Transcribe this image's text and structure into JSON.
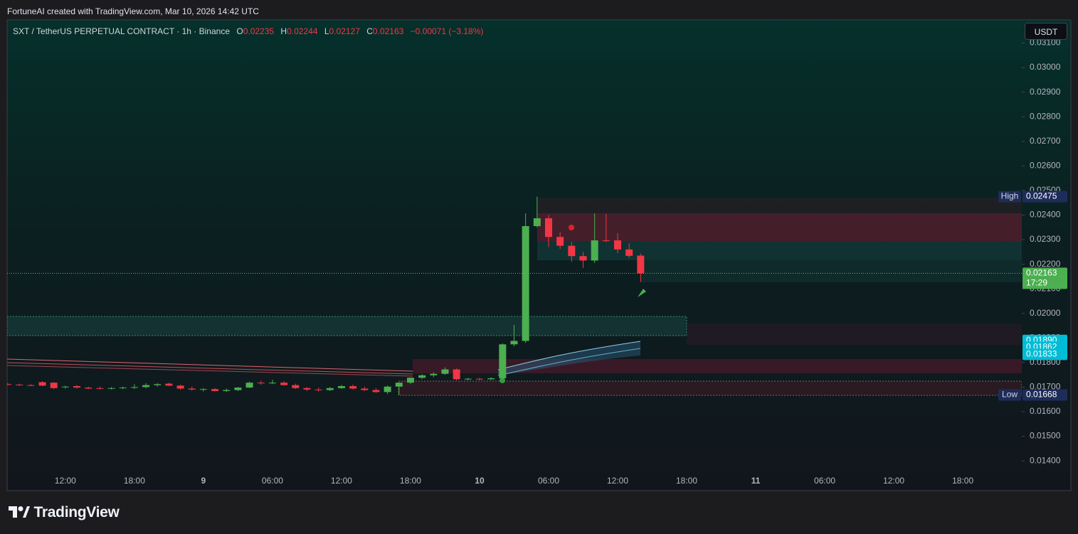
{
  "header": {
    "attribution": "FortuneAI created with TradingView.com, Mar 10, 2026 14:42 UTC",
    "symbol": "SXT / TetherUS PERPETUAL CONTRACT · 1h · Binance",
    "open_label": "O",
    "open": "0.02235",
    "high_label": "H",
    "high": "0.02244",
    "low_label": "L",
    "low": "0.02127",
    "close_label": "C",
    "close": "0.02163",
    "change": "−0.00071 (−3.18%)",
    "currency": "USDT",
    "brand": "TradingView"
  },
  "chart_data": {
    "type": "candlestick",
    "up_color": "#4caf50",
    "down_color": "#f23645",
    "categories": [
      null,
      null,
      null,
      null,
      null,
      "12:00",
      null,
      null,
      null,
      null,
      null,
      "18:00",
      null,
      null,
      null,
      null,
      null,
      "9",
      null,
      null,
      null,
      null,
      null,
      "06:00",
      null,
      null,
      null,
      null,
      null,
      "12:00",
      null,
      null,
      null,
      null,
      null,
      "18:00",
      null,
      null,
      null,
      null,
      null,
      "10",
      null,
      null,
      null,
      null,
      null,
      "06:00",
      null,
      null,
      null,
      null,
      null,
      "12:00",
      null,
      null,
      null,
      null,
      null,
      "18:00",
      null,
      null,
      null,
      null,
      null,
      "11",
      null,
      null,
      null,
      null,
      null,
      "06:00",
      null,
      null,
      null,
      null,
      null,
      "12:00",
      null,
      null,
      null,
      null,
      null,
      "18:00",
      null,
      null,
      null,
      null,
      null
    ],
    "open": [
      0.01712,
      0.0171,
      0.01708,
      0.0172,
      0.01718,
      0.017,
      0.01704,
      0.01698,
      0.01696,
      0.01694,
      0.01696,
      0.01698,
      0.017,
      0.01708,
      0.01714,
      0.01706,
      0.01694,
      0.0169,
      0.01692,
      0.01684,
      0.01688,
      0.01698,
      0.01718,
      0.01716,
      0.01718,
      0.01708,
      0.01696,
      0.0169,
      0.01688,
      0.01696,
      0.01704,
      0.01694,
      0.01688,
      0.0168,
      0.01702,
      0.01718,
      0.01738,
      0.01748,
      0.01754,
      0.01772,
      0.01732,
      0.01734,
      0.01732,
      0.01736,
      0.01874,
      0.01888,
      0.02355,
      0.02387,
      0.02311,
      0.02275,
      0.02233,
      0.02215,
      0.02297,
      0.02297,
      0.0226,
      0.02235,
      null,
      null,
      null,
      null,
      null,
      null,
      null,
      null,
      null,
      null,
      null,
      null,
      null,
      null,
      null,
      null,
      null,
      null,
      null,
      null,
      null,
      null,
      null,
      null,
      null,
      null,
      null,
      null,
      null,
      null,
      null,
      null,
      null
    ],
    "high": [
      0.01716,
      0.01714,
      0.01712,
      0.01724,
      0.0172,
      0.01706,
      0.01708,
      0.01702,
      0.01702,
      0.017,
      0.01702,
      0.01712,
      0.01716,
      0.01716,
      0.01718,
      0.0171,
      0.01702,
      0.01696,
      0.01696,
      0.01694,
      0.017,
      0.01722,
      0.01726,
      0.0173,
      0.01724,
      0.01714,
      0.017,
      0.01698,
      0.017,
      0.01708,
      0.0171,
      0.01702,
      0.01696,
      0.01706,
      0.0172,
      0.0174,
      0.01752,
      0.0176,
      0.0178,
      0.01776,
      0.01738,
      0.01738,
      0.0174,
      0.01878,
      0.01953,
      0.02407,
      0.02475,
      0.024,
      0.0233,
      0.0229,
      0.0225,
      0.02407,
      0.02405,
      0.02325,
      0.02285,
      0.02244,
      null,
      null,
      null,
      null,
      null,
      null,
      null,
      null,
      null,
      null,
      null,
      null,
      null,
      null,
      null,
      null,
      null,
      null,
      null,
      null,
      null,
      null,
      null,
      null,
      null,
      null,
      null,
      null,
      null,
      null,
      null,
      null,
      null
    ],
    "low": [
      0.01708,
      0.01706,
      0.01704,
      0.01704,
      0.01692,
      0.01694,
      0.01694,
      0.01692,
      0.0169,
      0.0169,
      0.01692,
      0.01692,
      0.01696,
      0.01702,
      0.01704,
      0.0169,
      0.01686,
      0.01682,
      0.01682,
      0.0168,
      0.01684,
      0.01696,
      0.0171,
      0.01712,
      0.01706,
      0.01692,
      0.01684,
      0.01682,
      0.01684,
      0.01692,
      0.0169,
      0.01684,
      0.01676,
      0.01672,
      0.01668,
      0.01712,
      0.01732,
      0.0174,
      0.0175,
      0.01728,
      0.01728,
      0.01728,
      0.01728,
      0.0173,
      0.01866,
      0.0188,
      0.0235,
      0.0227,
      0.02262,
      0.0221,
      0.02185,
      0.02205,
      0.0229,
      0.02245,
      0.02225,
      0.02127,
      null,
      null,
      null,
      null,
      null,
      null,
      null,
      null,
      null,
      null,
      null,
      null,
      null,
      null,
      null,
      null,
      null,
      null,
      null,
      null,
      null,
      null,
      null,
      null,
      null,
      null,
      null,
      null,
      null,
      null,
      null,
      null,
      null
    ],
    "close": [
      0.0171,
      0.01708,
      0.01706,
      0.01706,
      0.01696,
      0.01702,
      0.01698,
      0.01694,
      0.01694,
      0.01696,
      0.01698,
      0.017,
      0.01708,
      0.01712,
      0.01706,
      0.01694,
      0.0169,
      0.01692,
      0.01684,
      0.01688,
      0.01698,
      0.01718,
      0.01716,
      0.01718,
      0.01708,
      0.01696,
      0.0169,
      0.01688,
      0.01696,
      0.01704,
      0.01694,
      0.01688,
      0.0168,
      0.01702,
      0.01718,
      0.01738,
      0.01748,
      0.01754,
      0.01772,
      0.01732,
      0.01734,
      0.01732,
      0.01736,
      0.01874,
      0.01888,
      0.02355,
      0.02387,
      0.02311,
      0.02275,
      0.02233,
      0.02215,
      0.02297,
      0.02295,
      0.0226,
      0.02234,
      0.02163,
      null,
      null,
      null,
      null,
      null,
      null,
      null,
      null,
      null,
      null,
      null,
      null,
      null,
      null,
      null,
      null,
      null,
      null,
      null,
      null,
      null,
      null,
      null,
      null,
      null,
      null,
      null,
      null,
      null,
      null,
      null,
      null,
      null
    ],
    "ylim": [
      0.01354,
      0.03194
    ],
    "yticks": [
      {
        "value": 0.014,
        "label": "0.01400"
      },
      {
        "value": 0.015,
        "label": "0.01500"
      },
      {
        "value": 0.016,
        "label": "0.01600"
      },
      {
        "value": 0.017,
        "label": "0.01700"
      },
      {
        "value": 0.018,
        "label": "0.01800"
      },
      {
        "value": 0.019,
        "label": "0.01900"
      },
      {
        "value": 0.02,
        "label": "0.02000"
      },
      {
        "value": 0.021,
        "label": "0.02100"
      },
      {
        "value": 0.022,
        "label": "0.02200"
      },
      {
        "value": 0.023,
        "label": "0.02300"
      },
      {
        "value": 0.024,
        "label": "0.02400"
      },
      {
        "value": 0.025,
        "label": "0.02500"
      },
      {
        "value": 0.026,
        "label": "0.02600"
      },
      {
        "value": 0.027,
        "label": "0.02700"
      },
      {
        "value": 0.028,
        "label": "0.02800"
      },
      {
        "value": 0.029,
        "label": "0.02900"
      },
      {
        "value": 0.03,
        "label": "0.03000"
      },
      {
        "value": 0.031,
        "label": "0.03100"
      }
    ],
    "price_badges": [
      {
        "name": "High",
        "value": {
          "value": 0.02475,
          "label": "0.02475"
        },
        "color": "#1e2c5a"
      },
      {
        "value": {
          "value": 0.02163,
          "label": "0.02163"
        },
        "countdown": "17:29",
        "color": "#4caf50"
      },
      {
        "value": {
          "value": 0.0189,
          "label": "0.01890"
        },
        "color": "#00bcd4"
      },
      {
        "value": {
          "value": 0.01862,
          "label": "0.01862"
        },
        "color": "#00bcd4"
      },
      {
        "value": {
          "value": 0.01833,
          "label": "0.01833"
        },
        "color": "#00bcd4"
      },
      {
        "name": "Low",
        "value": {
          "value": 0.01668,
          "label": "0.01668"
        },
        "color": "#1e2c5a"
      }
    ]
  }
}
